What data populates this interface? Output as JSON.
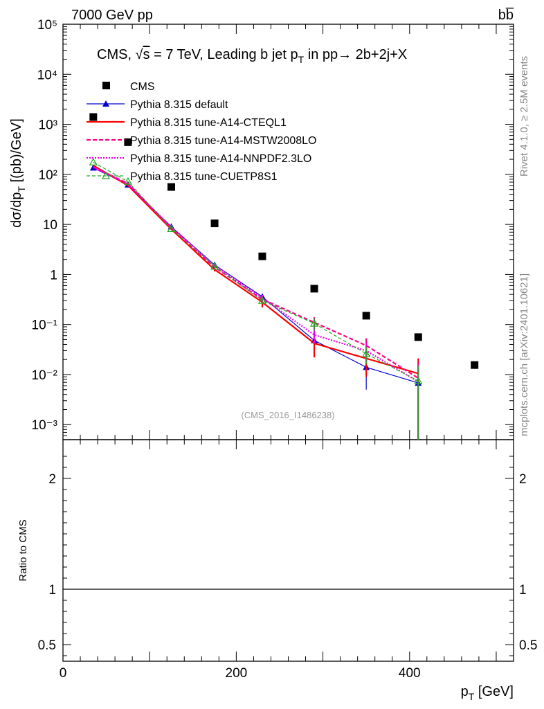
{
  "header": {
    "left": "7000 GeV pp",
    "right": "bb̅"
  },
  "side_labels": {
    "rivet": "Rivet 4.1.0, ≥ 2.5M events",
    "mcplots": "mcplots.cern.ch [arXiv:2401.10621]"
  },
  "chart_data": {
    "type": "line",
    "title": "CMS, √s = 7 TeV, Leading b jet p_T in pp→ 2b+2j+X",
    "title_parts": {
      "pre": "CMS, √",
      "s": "s",
      "mid": " = 7 TeV, Leading b jet p",
      "sub": "T",
      "post": " in pp→  2b+2j+X"
    },
    "ylabel": "dσ/dp_T [(pb)/GeV]",
    "ylabel_parts": {
      "pre": "dσ/dp",
      "sub": "T",
      "post": " [(pb)/GeV]"
    },
    "xlabel": "p_T [GeV]",
    "xlabel_parts": {
      "pre": "p",
      "sub": "T",
      "post": " [GeV]"
    },
    "ratio_ylabel": "Ratio to CMS",
    "watermark": "(CMS_2016_I1486238)",
    "xlim": [
      0,
      520
    ],
    "ylim": [
      0.0005,
      100000
    ],
    "ratio_ylim": [
      0.35,
      2.35
    ],
    "yscale": "log",
    "x_ticks": [
      {
        "value": 0,
        "label": "0"
      },
      {
        "value": 200,
        "label": "200"
      },
      {
        "value": 400,
        "label": "400"
      }
    ],
    "y_ticks": [
      {
        "value": 0.001,
        "label": "10⁻³"
      },
      {
        "value": 0.01,
        "label": "10⁻²"
      },
      {
        "value": 0.1,
        "label": "10⁻¹"
      },
      {
        "value": 1,
        "label": "1"
      },
      {
        "value": 10,
        "label": "10"
      },
      {
        "value": 100,
        "label": "10²"
      },
      {
        "value": 1000,
        "label": "10³"
      },
      {
        "value": 10000,
        "label": "10⁴"
      },
      {
        "value": 100000,
        "label": "10⁵"
      }
    ],
    "ratio_ticks": [
      {
        "value": 0.5,
        "label": "0.5"
      },
      {
        "value": 1,
        "label": "1"
      },
      {
        "value": 2,
        "label": "2"
      }
    ],
    "data": {
      "name": "CMS",
      "x": [
        35,
        75,
        125,
        175,
        230,
        290,
        350,
        410,
        475
      ],
      "y": [
        1400,
        440,
        56,
        10.5,
        2.3,
        0.52,
        0.15,
        0.056,
        0.0155
      ]
    },
    "series": [
      {
        "name": "Pythia 8.315 default",
        "color": "#0000cc",
        "dash": "",
        "width": 1.2,
        "marker": "triangle",
        "x": [
          35,
          75,
          125,
          175,
          230,
          290,
          350,
          410
        ],
        "y": [
          135,
          62,
          9.0,
          1.55,
          0.36,
          0.048,
          0.014,
          0.0068
        ],
        "err": [
          0,
          0,
          0,
          0.1,
          0.04,
          0.015,
          0.009,
          0.007
        ]
      },
      {
        "name": "Pythia 8.315 tune-A14-CTEQL1",
        "color": "#ff0000",
        "dash": "",
        "width": 2.2,
        "marker": "none",
        "x": [
          35,
          75,
          125,
          175,
          230,
          290,
          350,
          410
        ],
        "y": [
          150,
          60,
          8.0,
          1.25,
          0.28,
          0.042,
          0.021,
          0.0105
        ],
        "err": [
          0,
          0,
          0,
          0.1,
          0.06,
          0.02,
          0.012,
          0.0105
        ]
      },
      {
        "name": "Pythia 8.315 tune-A14-MSTW2008LO",
        "color": "#ff0088",
        "dash": "6,3",
        "width": 2.2,
        "marker": "none",
        "x": [
          35,
          75,
          125,
          175,
          230,
          290,
          350,
          410
        ],
        "y": [
          140,
          66,
          8.4,
          1.4,
          0.32,
          0.11,
          0.038,
          0.0085
        ],
        "err": [
          0,
          0,
          0,
          0.1,
          0.05,
          0.03,
          0.015,
          0.0085
        ]
      },
      {
        "name": "Pythia 8.315 tune-A14-NNPDF2.3LO",
        "color": "#ee00ee",
        "dash": "2,2",
        "width": 2.2,
        "marker": "none",
        "x": [
          35,
          75,
          125,
          175,
          230,
          290,
          350,
          410
        ],
        "y": [
          138,
          64,
          8.8,
          1.5,
          0.34,
          0.062,
          0.03,
          0.0072
        ],
        "err": [
          0,
          0,
          0,
          0.1,
          0.05,
          0.02,
          0.012,
          0.0072
        ]
      },
      {
        "name": "Pythia 8.315 tune-CUETP8S1",
        "color": "#22aa22",
        "dash": "5,3",
        "width": 1.2,
        "marker": "open-triangle",
        "x": [
          35,
          75,
          125,
          175,
          230,
          290,
          350,
          410
        ],
        "y": [
          175,
          72,
          8.2,
          1.45,
          0.3,
          0.105,
          0.026,
          0.0075
        ],
        "err": [
          0,
          0,
          0,
          0.1,
          0.04,
          0.03,
          0.01,
          0.0075
        ]
      }
    ]
  }
}
